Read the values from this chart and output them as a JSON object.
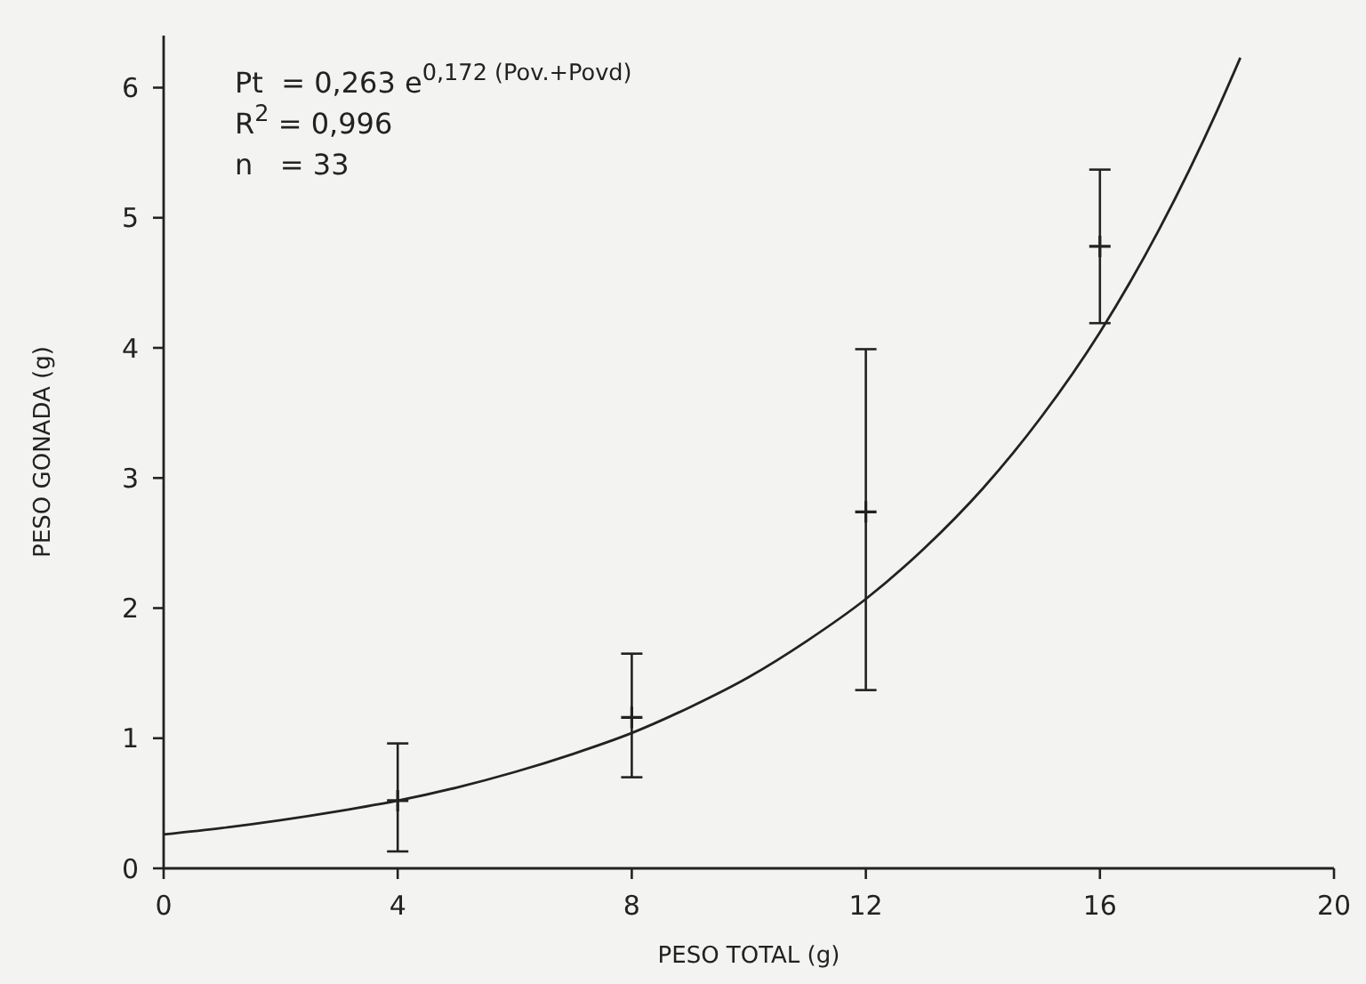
{
  "chart_data": {
    "type": "scatter",
    "xlabel": "PESO TOTAL (g)",
    "ylabel": "PESO GONADA (g)",
    "annotations": [
      "Pt  = 0,263 e$^{0,172 (Pov.+Povd)}$",
      "R$^{2}$ = 0,996",
      "n   = 33"
    ],
    "xlim": [
      0,
      20
    ],
    "xticks": [
      0,
      4,
      8,
      12,
      16,
      20
    ],
    "ylim": [
      0,
      6.4
    ],
    "yticks": [
      0,
      1,
      2,
      3,
      4,
      5,
      6
    ],
    "grid": false,
    "series": [
      {
        "color": "#222222",
        "marker": "cross",
        "x": [
          4,
          8,
          12,
          16
        ],
        "values": [
          0.52,
          1.16,
          2.74,
          4.78
        ],
        "errors": [
          [
            0.13,
            0.96
          ],
          [
            0.7,
            1.65
          ],
          [
            1.37,
            3.99
          ],
          [
            4.19,
            5.37
          ]
        ]
      },
      {
        "type": "line",
        "color": "#222222",
        "x": [
          0,
          1,
          2,
          3,
          4,
          5,
          6,
          7,
          8,
          9,
          10,
          11,
          12,
          13,
          14,
          15,
          16,
          17,
          18,
          18.4
        ],
        "values": [
          0.26,
          0.31,
          0.37,
          0.44,
          0.52,
          0.62,
          0.74,
          0.88,
          1.04,
          1.24,
          1.47,
          1.75,
          2.07,
          2.46,
          2.92,
          3.47,
          4.12,
          4.9,
          5.82,
          6.23
        ]
      }
    ]
  }
}
